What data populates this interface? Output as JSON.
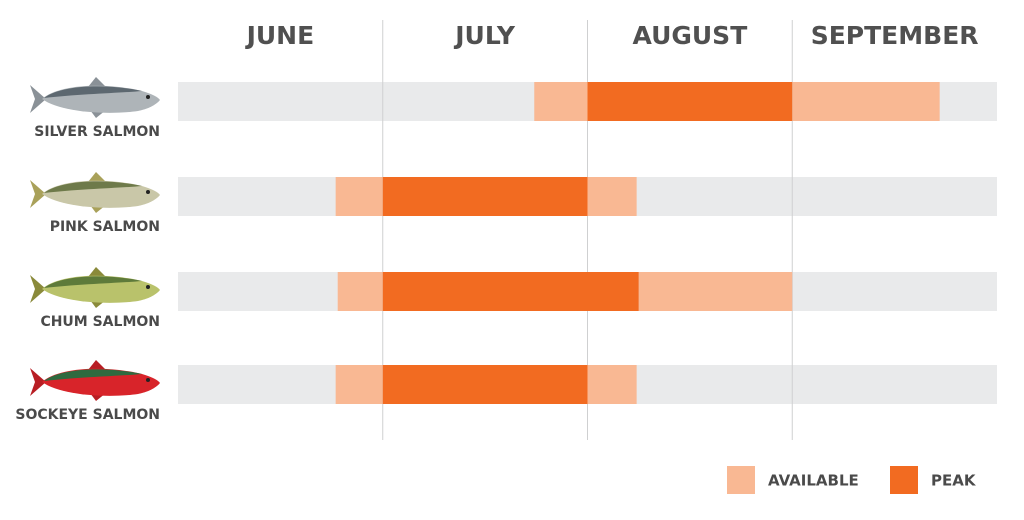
{
  "chart_data": {
    "type": "gantt",
    "xlim": [
      0,
      4
    ],
    "months": [
      "JUNE",
      "JULY",
      "AUGUST",
      "SEPTEMBER"
    ],
    "categories": [
      "SILVER SALMON",
      "PINK SALMON",
      "CHUM SALMON",
      "SOCKEYE SALMON"
    ],
    "series": [
      {
        "name": "AVAILABLE",
        "color": "#f9b893",
        "ranges": [
          [
            [
              1.74,
              2.0
            ],
            [
              3.0,
              3.72
            ]
          ],
          [
            [
              0.77,
              1.0
            ],
            [
              2.0,
              2.24
            ]
          ],
          [
            [
              0.78,
              1.0
            ],
            [
              2.25,
              3.0
            ]
          ],
          [
            [
              0.77,
              1.0
            ],
            [
              2.0,
              2.24
            ]
          ]
        ]
      },
      {
        "name": "PEAK",
        "color": "#f26b21",
        "ranges": [
          [
            [
              2.0,
              3.0
            ]
          ],
          [
            [
              1.0,
              2.0
            ]
          ],
          [
            [
              1.0,
              2.25
            ]
          ],
          [
            [
              1.0,
              2.0
            ]
          ]
        ]
      }
    ]
  }
}
